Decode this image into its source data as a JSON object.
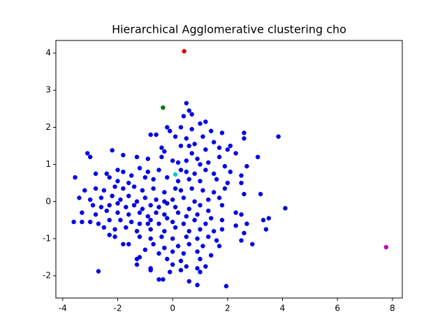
{
  "chart_data": {
    "type": "scatter",
    "title": "Hierarchical Agglomerative clustering cho",
    "xlim": [
      -4.25,
      8.36
    ],
    "ylim": [
      -2.6,
      4.34
    ],
    "xticks": [
      -4,
      -2,
      0,
      2,
      4,
      6,
      8
    ],
    "yticks": [
      -2,
      -1,
      0,
      1,
      2,
      3,
      4
    ],
    "series": [
      {
        "color": "#0000e6",
        "x": [
          0.5,
          0.6,
          0.4,
          0.7,
          1.2,
          1.0,
          0.3,
          -0.1,
          -0.2,
          0.7,
          1.4,
          1.8,
          2.6,
          2.6,
          3.85,
          -0.8,
          -0.6,
          0.1,
          0.5,
          1.1,
          1.5,
          2.1,
          1.7,
          0.8,
          0.6,
          -0.4,
          -0.3,
          0.3,
          0.7,
          1.2,
          2.0,
          2.3,
          1.7,
          0.9,
          -2.2,
          -1.8,
          -3.1,
          -3.0,
          -1.3,
          -0.9,
          -0.4,
          0.0,
          0.2,
          0.5,
          1.0,
          1.3,
          1.9,
          3.1,
          2.7,
          -3.55,
          -2.8,
          -2.4,
          -2.0,
          -1.8,
          -1.5,
          -1.2,
          -0.9,
          -0.5,
          0.3,
          0.5,
          0.8,
          1.2,
          1.5,
          2.1,
          2.5,
          -2.3,
          -2.0,
          -1.6,
          -1.0,
          -0.7,
          -0.2,
          0.2,
          0.6,
          1.0,
          1.6,
          2.0,
          2.5,
          -3.2,
          -2.8,
          -2.5,
          -2.1,
          -1.8,
          -1.4,
          -1.1,
          -0.7,
          -0.3,
          0.1,
          0.3,
          0.7,
          1.1,
          1.5,
          1.9,
          2.6,
          3.2,
          -3.4,
          -3.0,
          -2.6,
          -2.2,
          -1.9,
          -1.6,
          -1.3,
          -1.0,
          -0.6,
          -0.3,
          0.0,
          0.4,
          0.8,
          1.3,
          1.7,
          -2.9,
          -2.6,
          -2.3,
          -2.0,
          -1.7,
          -1.4,
          -1.1,
          -0.8,
          -0.5,
          -0.2,
          0.1,
          0.6,
          1.0,
          1.3,
          1.8,
          4.1,
          -3.3,
          -2.8,
          -2.4,
          -2.0,
          -1.6,
          -1.2,
          -0.9,
          -0.6,
          -0.3,
          0.2,
          0.5,
          0.9,
          1.4,
          2.3,
          2.5,
          -3.6,
          -3.0,
          -2.7,
          -2.3,
          -1.9,
          -1.5,
          -1.2,
          -0.8,
          -0.5,
          0.0,
          0.4,
          0.8,
          1.2,
          1.8,
          2.3,
          2.7,
          3.3,
          3.5,
          -3.3,
          -2.5,
          -2.1,
          -1.7,
          -1.3,
          -0.8,
          -0.3,
          0.1,
          0.6,
          1.0,
          1.5,
          1.8,
          2.6,
          3.4,
          -2.3,
          -2.1,
          -1.2,
          -0.8,
          -0.4,
          0.0,
          0.5,
          0.9,
          1.3,
          1.6,
          2.5,
          2.9,
          -1.6,
          -0.7,
          -0.3,
          0.2,
          0.6,
          1.1,
          1.7,
          -1.0,
          -0.5,
          0.0,
          0.4,
          0.9,
          1.4,
          -1.2,
          -0.2,
          0.3,
          1.0,
          -1.3,
          -0.8,
          0.0,
          0.5,
          0.9,
          1.2,
          -2.7,
          -0.8,
          -0.1,
          0.3,
          1.0,
          -0.5,
          -0.35,
          0.6,
          0.9,
          1.95,
          -1.3,
          -1.8,
          -0.9,
          -0.2
        ],
        "values": [
          2.65,
          2.45,
          2.3,
          2.35,
          2.15,
          2.1,
          2.0,
          1.9,
          2.0,
          1.95,
          1.9,
          1.85,
          1.85,
          1.7,
          1.75,
          1.8,
          1.8,
          1.75,
          1.7,
          1.75,
          1.6,
          1.5,
          1.45,
          1.55,
          1.5,
          1.45,
          1.35,
          1.5,
          1.3,
          1.4,
          1.4,
          1.3,
          1.2,
          1.15,
          1.38,
          1.25,
          1.3,
          1.2,
          1.2,
          1.15,
          1.2,
          1.1,
          1.05,
          1.1,
          1.0,
          1.05,
          0.95,
          1.2,
          0.95,
          0.65,
          0.75,
          0.75,
          0.85,
          0.8,
          0.7,
          0.9,
          0.8,
          0.85,
          0.85,
          0.8,
          0.75,
          0.85,
          0.75,
          0.8,
          0.7,
          0.65,
          0.55,
          0.5,
          0.65,
          0.6,
          0.65,
          0.55,
          0.6,
          0.55,
          0.6,
          0.5,
          0.5,
          0.3,
          0.35,
          0.3,
          0.4,
          0.35,
          0.4,
          0.3,
          0.35,
          0.25,
          0.35,
          0.3,
          0.35,
          0.3,
          0.25,
          0.35,
          0.2,
          0.2,
          0.1,
          0.05,
          0.1,
          0.15,
          0.05,
          0.15,
          0.0,
          0.1,
          0.05,
          0.0,
          0.05,
          0.1,
          0.0,
          0.05,
          0.1,
          -0.1,
          -0.15,
          -0.1,
          -0.05,
          -0.15,
          -0.1,
          -0.2,
          -0.1,
          -0.15,
          -0.05,
          -0.15,
          -0.2,
          -0.1,
          -0.25,
          -0.1,
          -0.18,
          -0.3,
          -0.35,
          -0.25,
          -0.3,
          -0.35,
          -0.3,
          -0.4,
          -0.3,
          -0.35,
          -0.3,
          -0.4,
          -0.35,
          -0.45,
          -0.3,
          -0.35,
          -0.55,
          -0.55,
          -0.6,
          -0.5,
          -0.5,
          -0.55,
          -0.6,
          -0.5,
          -0.6,
          -0.55,
          -0.6,
          -0.5,
          -0.6,
          -0.5,
          -0.65,
          -0.6,
          -0.5,
          -0.45,
          -0.55,
          -0.7,
          -0.75,
          -0.7,
          -0.8,
          -0.75,
          -0.8,
          -0.7,
          -0.8,
          -0.75,
          -0.8,
          -0.75,
          -0.85,
          -0.75,
          -0.9,
          -0.95,
          -0.95,
          -1.0,
          -0.95,
          -1.0,
          -0.95,
          -1.0,
          -0.95,
          -1.05,
          -1.05,
          -1.15,
          -1.15,
          -1.15,
          -1.25,
          -1.2,
          -1.15,
          -1.2,
          -1.2,
          -1.3,
          -1.4,
          -1.35,
          -1.4,
          -1.35,
          -1.45,
          -1.5,
          -1.55,
          -1.6,
          -1.55,
          -1.7,
          -1.8,
          -1.7,
          -1.75,
          -1.8,
          -1.75,
          -1.88,
          -1.85,
          -1.9,
          -1.85,
          -1.9,
          -2.1,
          -2.1,
          -2.15,
          -2.25,
          -2.28,
          -1.55,
          -1.15,
          -0.6,
          -0.45
        ]
      },
      {
        "color": "#e00000",
        "x": [
          0.42
        ],
        "values": [
          4.05
        ]
      },
      {
        "color": "#007a00",
        "x": [
          -0.35
        ],
        "values": [
          2.53
        ]
      },
      {
        "color": "#00c8c8",
        "x": [
          0.1
        ],
        "values": [
          0.73
        ]
      },
      {
        "color": "#c000c0",
        "x": [
          7.77
        ],
        "values": [
          -1.23
        ]
      }
    ]
  }
}
